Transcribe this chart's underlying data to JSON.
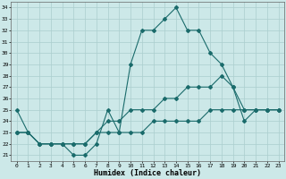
{
  "xlabel": "Humidex (Indice chaleur)",
  "bg_color": "#cce8e8",
  "grid_color": "#aacece",
  "line_color": "#1a6b6b",
  "xlim": [
    -0.5,
    23.5
  ],
  "ylim": [
    20.5,
    34.5
  ],
  "xticks": [
    0,
    1,
    2,
    3,
    4,
    5,
    6,
    7,
    8,
    9,
    10,
    11,
    12,
    13,
    14,
    15,
    16,
    17,
    18,
    19,
    20,
    21,
    22,
    23
  ],
  "yticks": [
    21,
    22,
    23,
    24,
    25,
    26,
    27,
    28,
    29,
    30,
    31,
    32,
    33,
    34
  ],
  "line1_x": [
    0,
    1,
    2,
    3,
    4,
    5,
    6,
    7,
    8,
    9,
    10,
    11,
    12,
    13,
    14,
    15,
    16,
    17,
    18,
    19,
    20,
    21,
    22,
    23
  ],
  "line1_y": [
    25,
    23,
    22,
    22,
    22,
    21,
    21,
    22,
    25,
    23,
    29,
    32,
    32,
    33,
    34,
    32,
    32,
    30,
    29,
    27,
    24,
    25,
    25,
    25
  ],
  "line2_x": [
    0,
    1,
    2,
    3,
    4,
    5,
    6,
    7,
    8,
    9,
    10,
    11,
    12,
    13,
    14,
    15,
    16,
    17,
    18,
    19,
    20,
    21,
    22,
    23
  ],
  "line2_y": [
    23,
    23,
    22,
    22,
    22,
    22,
    22,
    23,
    23,
    23,
    23,
    23,
    24,
    24,
    24,
    24,
    24,
    25,
    25,
    25,
    25,
    25,
    25,
    25
  ],
  "line3_x": [
    0,
    1,
    2,
    3,
    4,
    5,
    6,
    7,
    8,
    9,
    10,
    11,
    12,
    13,
    14,
    15,
    16,
    17,
    18,
    19,
    20,
    21,
    22,
    23
  ],
  "line3_y": [
    23,
    23,
    22,
    22,
    22,
    22,
    22,
    23,
    24,
    24,
    25,
    25,
    25,
    26,
    26,
    27,
    27,
    27,
    28,
    27,
    25,
    25,
    25,
    25
  ],
  "markersize": 2.0,
  "linewidth": 0.8,
  "tick_fontsize": 4.5,
  "xlabel_fontsize": 6.0
}
